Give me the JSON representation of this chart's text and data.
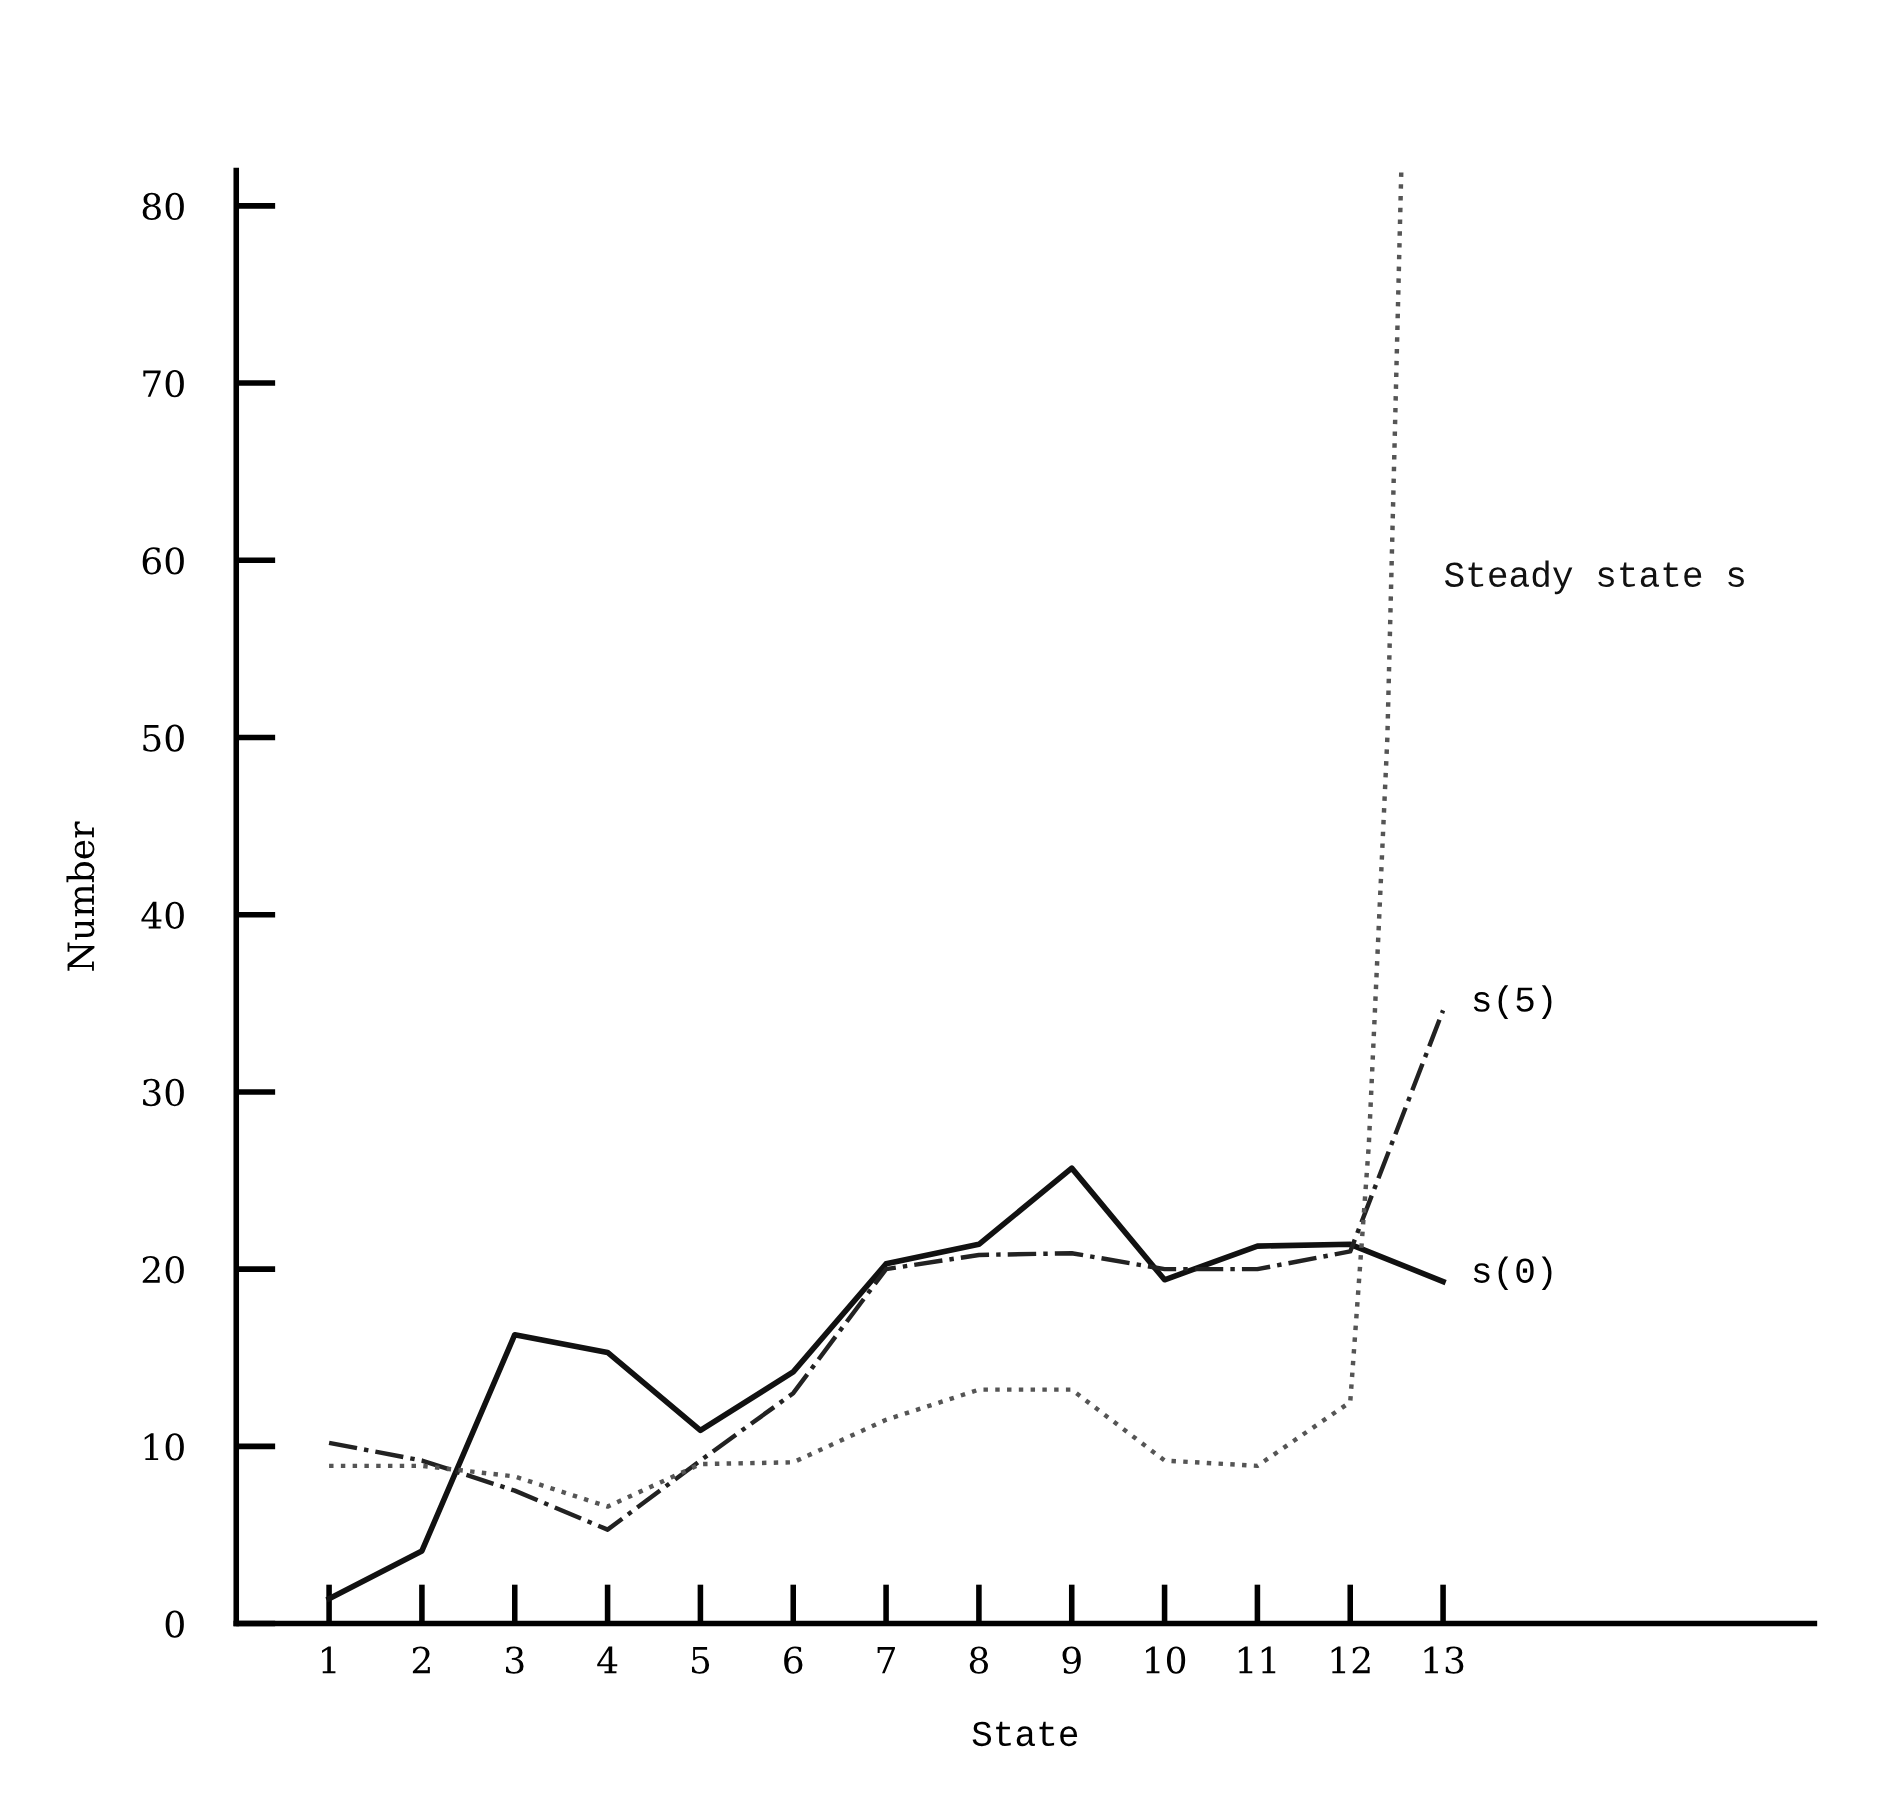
{
  "chart_data": {
    "type": "line",
    "xlabel": "State",
    "ylabel": "Number",
    "xlim": [
      0,
      17
    ],
    "xticks": [
      1,
      2,
      3,
      4,
      5,
      6,
      7,
      8,
      9,
      10,
      11,
      12,
      13
    ],
    "ylim": [
      0,
      82
    ],
    "yticks": [
      0,
      10,
      20,
      30,
      40,
      50,
      60,
      70,
      80
    ],
    "grid": false,
    "legend": false,
    "marker": "none",
    "series": [
      {
        "name": "s(0)",
        "color": "#111111",
        "line_style": "solid",
        "x": [
          1,
          2,
          3,
          4,
          5,
          6,
          7,
          8,
          9,
          10,
          11,
          12,
          13
        ],
        "values": [
          1.4,
          4.1,
          16.3,
          15.3,
          10.9,
          14.2,
          20.3,
          21.4,
          25.7,
          19.4,
          21.3,
          21.4,
          19.3
        ]
      },
      {
        "name": "s(5)",
        "color": "#222222",
        "line_style": "dashed",
        "x": [
          1,
          2,
          3,
          4,
          5,
          6,
          7,
          8,
          9,
          10,
          11,
          12,
          13
        ],
        "values": [
          10.2,
          9.2,
          7.5,
          5.3,
          9.2,
          13,
          20,
          20.8,
          20.9,
          20,
          20,
          21,
          34.6
        ]
      },
      {
        "name": "Steady state s",
        "color": "#555555",
        "line_style": "dotted",
        "x": [
          1,
          2,
          3,
          4,
          5,
          6,
          7,
          8,
          9,
          10,
          11,
          12,
          12.2,
          12.4,
          12.55
        ],
        "values": [
          8.9,
          8.9,
          8.3,
          6.6,
          9,
          9.1,
          11.5,
          13.2,
          13.2,
          9.2,
          8.9,
          12.5,
          27,
          50,
          82
        ]
      }
    ]
  }
}
